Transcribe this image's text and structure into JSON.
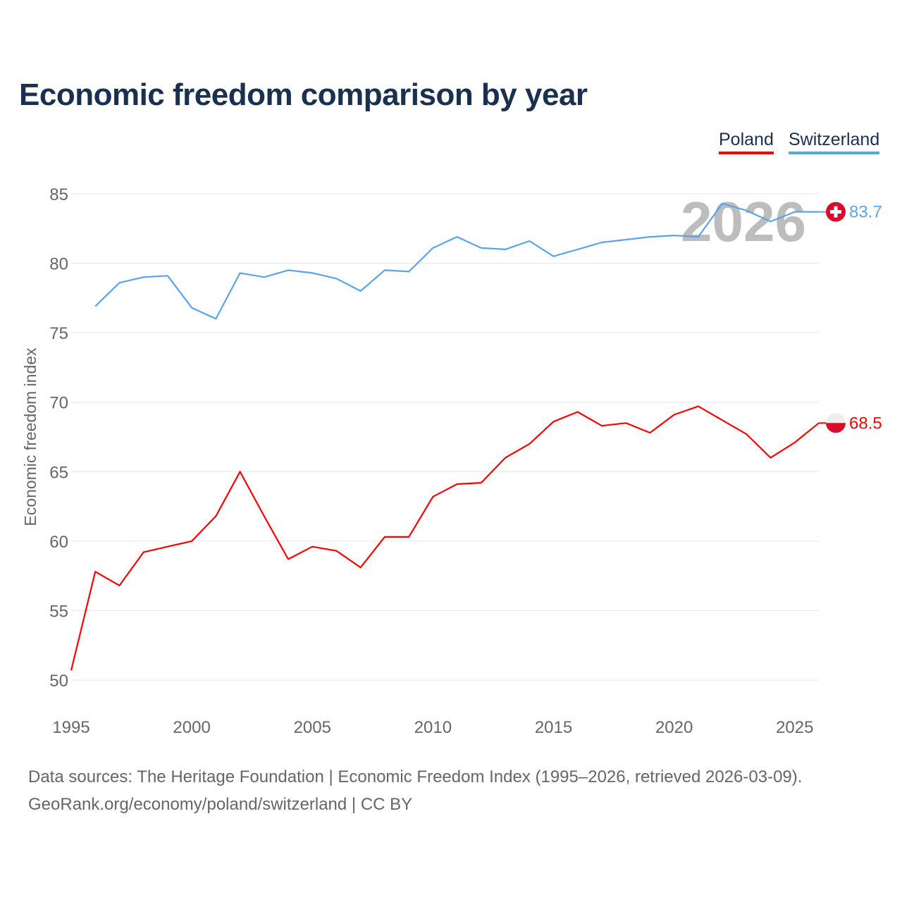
{
  "chart_data": {
    "type": "line",
    "title": "Economic freedom comparison by year",
    "xlabel": "",
    "ylabel": "Economic freedom index",
    "ylim": [
      50,
      85
    ],
    "xlim": [
      1995,
      2026
    ],
    "yticks": [
      "50",
      "55",
      "60",
      "65",
      "70",
      "75",
      "80",
      "85"
    ],
    "xticks": [
      "1995",
      "2000",
      "2005",
      "2010",
      "2015",
      "2020",
      "2025"
    ],
    "grid": true,
    "legend_position": "top-right",
    "watermark_year": "2026",
    "series": [
      {
        "name": "Poland",
        "color": "#ff0000",
        "end_label": "68.5",
        "flag": "poland",
        "x": [
          1995,
          1996,
          1997,
          1998,
          1999,
          2000,
          2001,
          2002,
          2003,
          2004,
          2005,
          2006,
          2007,
          2008,
          2009,
          2010,
          2011,
          2012,
          2013,
          2014,
          2015,
          2016,
          2017,
          2018,
          2019,
          2020,
          2021,
          2022,
          2023,
          2024,
          2025,
          2026
        ],
        "values": [
          50.7,
          57.8,
          56.8,
          59.2,
          59.6,
          60.0,
          61.8,
          65.0,
          61.8,
          58.7,
          59.6,
          59.3,
          58.1,
          60.3,
          60.3,
          63.2,
          64.1,
          64.2,
          66.0,
          67.0,
          68.6,
          69.3,
          68.3,
          68.5,
          67.8,
          69.1,
          69.7,
          68.7,
          67.7,
          66.0,
          67.1,
          68.5
        ]
      },
      {
        "name": "Switzerland",
        "color": "#5ba4ea",
        "end_label": "83.7",
        "flag": "switzerland",
        "x": [
          1996,
          1997,
          1998,
          1999,
          2000,
          2001,
          2002,
          2003,
          2004,
          2005,
          2006,
          2007,
          2008,
          2009,
          2010,
          2011,
          2012,
          2013,
          2014,
          2015,
          2016,
          2017,
          2018,
          2019,
          2020,
          2021,
          2022,
          2023,
          2024,
          2025,
          2026
        ],
        "values": [
          76.9,
          78.6,
          79.0,
          79.1,
          76.8,
          76.0,
          79.3,
          79.0,
          79.5,
          79.3,
          78.9,
          78.0,
          79.5,
          79.4,
          81.1,
          81.9,
          81.1,
          81.0,
          81.6,
          80.5,
          81.0,
          81.5,
          81.7,
          81.9,
          82.0,
          81.9,
          84.3,
          83.8,
          83.0,
          83.7,
          83.7
        ]
      }
    ]
  },
  "footer": {
    "source": "Data sources: The Heritage Foundation | Economic Freedom Index (1995–2026, retrieved 2026-03-09).",
    "credit": "GeoRank.org/economy/poland/switzerland | CC BY"
  }
}
